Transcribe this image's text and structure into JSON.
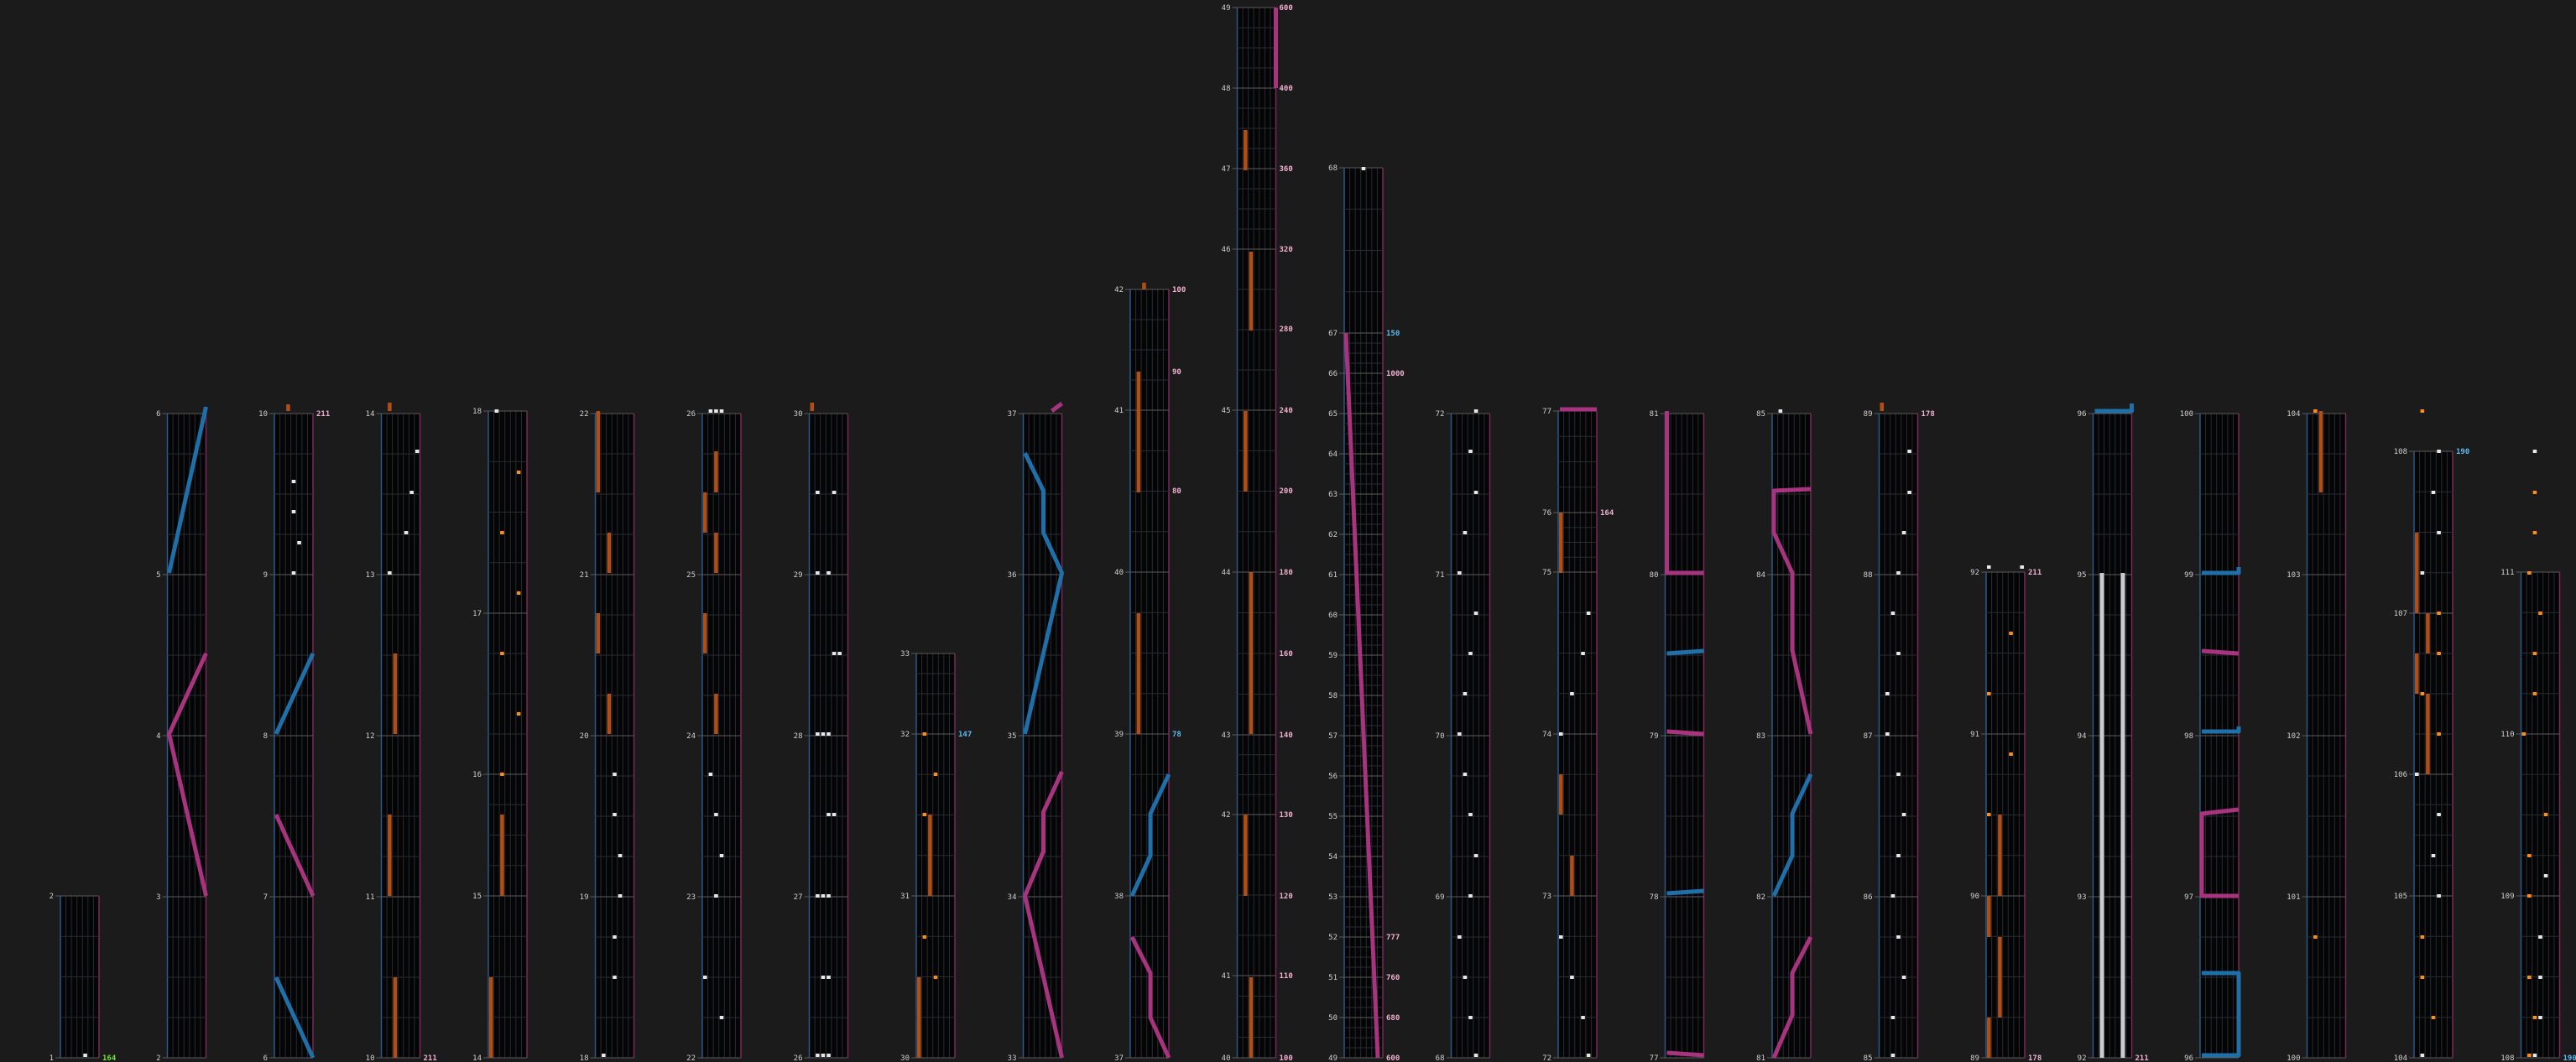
{
  "colors": {
    "background": "#1b1b1b",
    "lane": "#050505",
    "grid": "#262b35",
    "measure_line": "#5a5a5a",
    "left_edge": "#2a5a8a",
    "right_edge": "#7a2a5a",
    "orange_note": "#ff8c1a",
    "orange_long": "#b04e16",
    "white_note": "#e8e8e8",
    "blue": "#1f6fa8",
    "magenta": "#a8337e",
    "silver": "#c8ccd0",
    "bpm_pink": "#f0b0d0",
    "bpm_blue": "#60b8f0",
    "bpm_green": "#70e040"
  },
  "chart_data": {
    "type": "table",
    "columns": [
      {
        "measures": [
          1,
          2
        ],
        "bpm": [
          {
            "m": 1,
            "label": "164",
            "color": "green"
          }
        ]
      },
      {
        "measures": [
          2,
          3,
          4,
          5,
          6
        ]
      },
      {
        "measures": [
          6,
          7,
          8,
          9,
          10
        ],
        "bpm": [
          {
            "m": 10,
            "label": "211",
            "color": "pink"
          }
        ]
      },
      {
        "measures": [
          10,
          11,
          12,
          13,
          14
        ],
        "bpm": [
          {
            "m": 10,
            "label": "211",
            "color": "pink"
          }
        ]
      },
      {
        "measures": [
          14,
          15,
          16,
          17,
          18
        ]
      },
      {
        "measures": [
          18,
          19,
          20,
          21,
          22
        ]
      },
      {
        "measures": [
          22,
          23,
          24,
          25,
          26
        ]
      },
      {
        "measures": [
          26,
          27,
          28,
          29,
          30
        ]
      },
      {
        "measures": [
          30,
          31,
          32,
          33
        ],
        "bpm": [
          {
            "m": 32,
            "label": "147",
            "color": "blue"
          }
        ]
      },
      {
        "measures": [
          33,
          34,
          35,
          36,
          37
        ]
      },
      {
        "measures": [
          37,
          38,
          39,
          40,
          41,
          42
        ],
        "bpm": [
          {
            "m": 39,
            "label": "78",
            "color": "blue"
          },
          {
            "m": 41,
            "label": "80",
            "color": "pink"
          },
          {
            "m": 42,
            "label": "90",
            "color": "pink"
          },
          {
            "m": 42.95,
            "label": "100",
            "color": "pink"
          }
        ]
      },
      {
        "measures": [
          40,
          41,
          42,
          43,
          44,
          45,
          46,
          47,
          48,
          49
        ],
        "bpm": [
          {
            "m": 40,
            "label": "100",
            "color": "pink"
          },
          {
            "m": 41,
            "label": "110",
            "color": "pink"
          },
          {
            "m": 42,
            "label": "120",
            "color": "pink"
          },
          {
            "m": 43,
            "label": "130",
            "color": "pink"
          },
          {
            "m": 44,
            "label": "140",
            "color": "pink"
          },
          {
            "m": 45,
            "label": "160",
            "color": "pink"
          },
          {
            "m": 46,
            "label": "180",
            "color": "pink"
          },
          {
            "m": 47,
            "label": "200",
            "color": "pink"
          },
          {
            "m": 48,
            "label": "240",
            "color": "pink"
          },
          {
            "m": 49,
            "label": "280",
            "color": "pink"
          },
          {
            "m": 50,
            "label": "320",
            "color": "pink"
          },
          {
            "m": 51,
            "label": "360",
            "color": "pink"
          },
          {
            "m": 52,
            "label": "400",
            "color": "pink"
          },
          {
            "m": 53,
            "label": "600",
            "color": "pink"
          }
        ]
      },
      {
        "measures": [
          49,
          50,
          51,
          52,
          53,
          54,
          55,
          56,
          57,
          58,
          59,
          60,
          61,
          62,
          63,
          64,
          65,
          66,
          67,
          68
        ],
        "bpm": [
          {
            "m": 49,
            "label": "600",
            "color": "pink"
          },
          {
            "m": 50,
            "label": "680",
            "color": "pink"
          },
          {
            "m": 51,
            "label": "760",
            "color": "pink"
          },
          {
            "m": 52,
            "label": "777",
            "color": "pink"
          },
          {
            "m": 66,
            "label": "1000",
            "color": "pink"
          },
          {
            "m": 67,
            "label": "150",
            "color": "blue"
          }
        ]
      },
      {
        "measures": [
          68,
          69,
          70,
          71,
          72
        ]
      },
      {
        "measures": [
          72,
          73,
          74,
          75,
          76,
          77
        ],
        "bpm": [
          {
            "m": 76,
            "label": "164",
            "color": "pink"
          }
        ]
      },
      {
        "measures": [
          77,
          78,
          79,
          80,
          81
        ]
      },
      {
        "measures": [
          81,
          82,
          83,
          84,
          85
        ]
      },
      {
        "measures": [
          85,
          86,
          87,
          88,
          89
        ],
        "bpm": [
          {
            "m": 89,
            "label": "178",
            "color": "pink"
          }
        ]
      },
      {
        "measures": [
          89,
          90,
          91,
          92
        ],
        "bpm": [
          {
            "m": 89,
            "label": "178",
            "color": "pink"
          },
          {
            "m": 92,
            "label": "211",
            "color": "pink"
          }
        ]
      },
      {
        "measures": [
          92,
          93,
          94,
          95,
          96
        ],
        "bpm": [
          {
            "m": 92,
            "label": "211",
            "color": "pink"
          }
        ]
      },
      {
        "measures": [
          96,
          97,
          98,
          99,
          100
        ]
      },
      {
        "measures": [
          100,
          101,
          102,
          103,
          104
        ]
      },
      {
        "measures": [
          104,
          105,
          106,
          107,
          108
        ],
        "bpm": [
          {
            "m": 108,
            "label": "190",
            "color": "blue"
          }
        ]
      },
      {
        "measures": [
          108,
          109,
          110,
          111
        ],
        "bpm": [
          {
            "m": 108,
            "label": "190",
            "color": "blue"
          }
        ]
      }
    ]
  }
}
